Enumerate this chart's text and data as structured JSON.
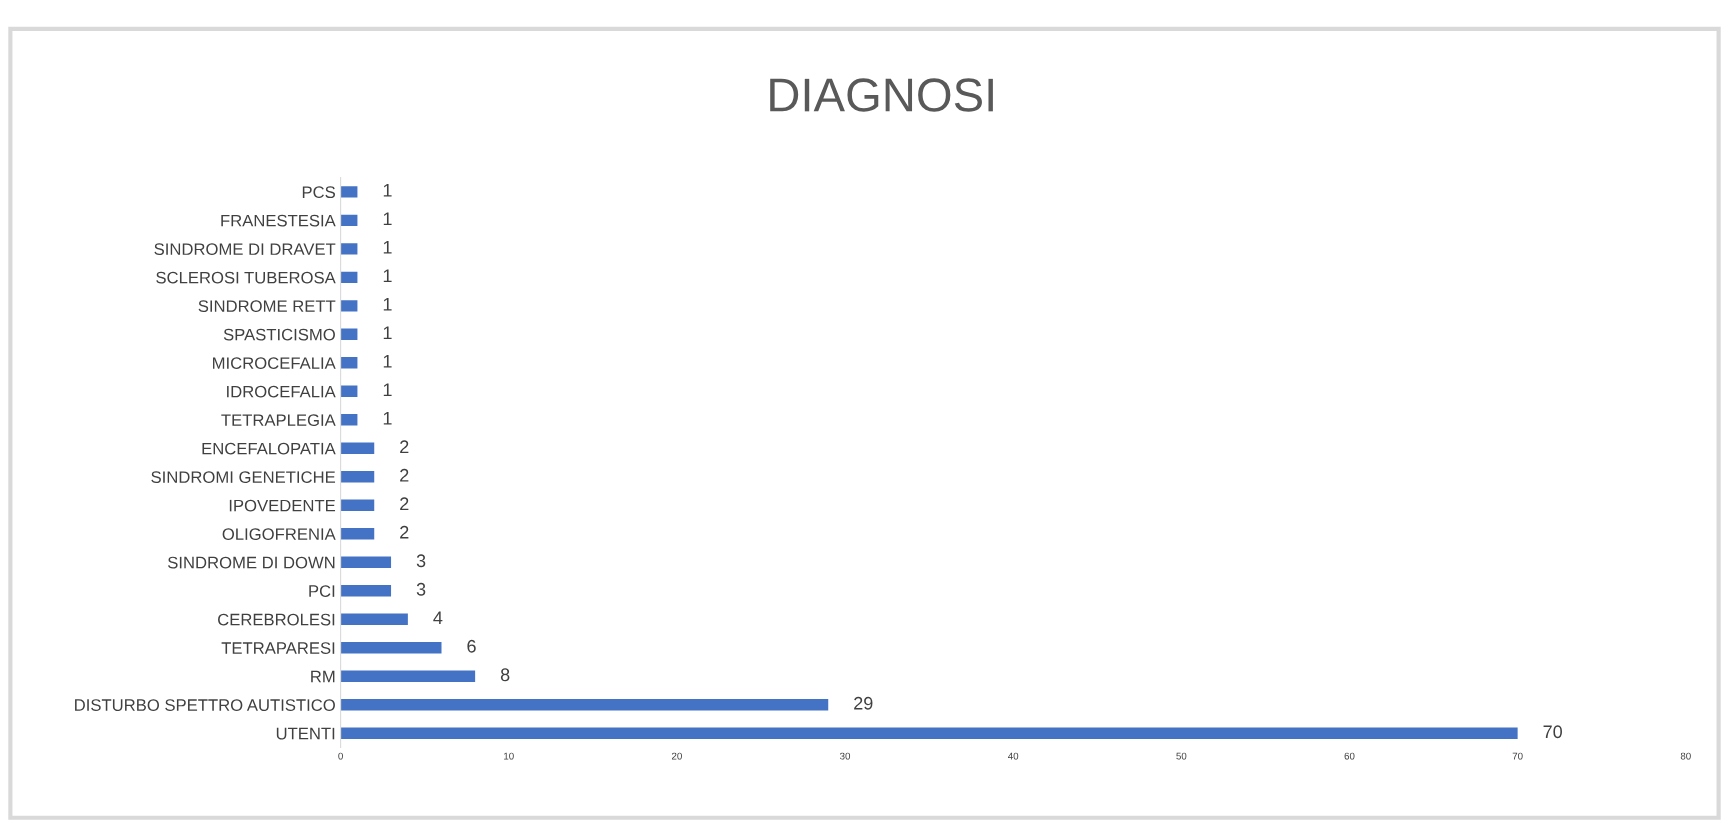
{
  "chart_data": {
    "type": "bar",
    "orientation": "horizontal",
    "title": "DIAGNOSI",
    "categories": [
      "PCS",
      "FRANESTESIA",
      "SINDROME DI DRAVET",
      "SCLEROSI TUBEROSA",
      "SINDROME RETT",
      "SPASTICISMO",
      "MICROCEFALIA",
      "IDROCEFALIA",
      "TETRAPLEGIA",
      "ENCEFALOPATIA",
      "SINDROMI GENETICHE",
      "IPOVEDENTE",
      "OLIGOFRENIA",
      "SINDROME DI DOWN",
      "PCI",
      "CEREBROLESI",
      "TETRAPARESI",
      "RM",
      "DISTURBO SPETTRO AUTISTICO",
      "UTENTI"
    ],
    "values": [
      1,
      1,
      1,
      1,
      1,
      1,
      1,
      1,
      1,
      2,
      2,
      2,
      2,
      3,
      3,
      4,
      6,
      8,
      29,
      70
    ],
    "color": "#4472c4",
    "xlim": [
      0,
      80
    ],
    "xticks": [
      0,
      10,
      20,
      30,
      40,
      50,
      60,
      70,
      80
    ],
    "data_labels": true,
    "grid": false,
    "legend": false
  }
}
